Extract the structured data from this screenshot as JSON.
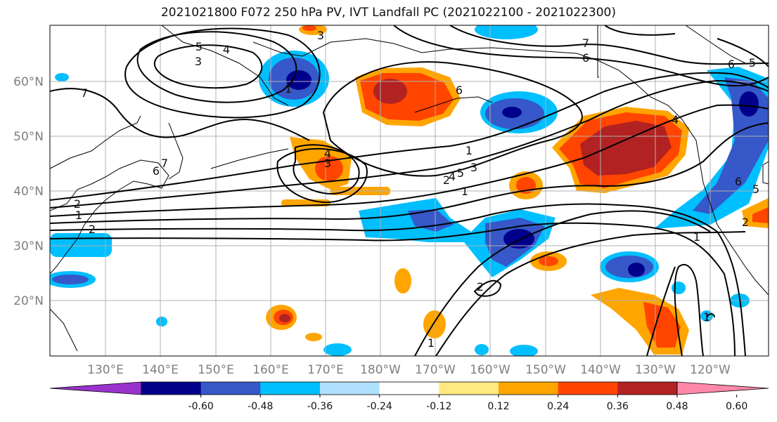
{
  "title": "2021021800 F072 250 hPa PV, IVT Landfall PC (2021022100 - 2021022300)",
  "map": {
    "projection": "cylindrical",
    "lon_range": [
      120,
      251
    ],
    "lat_range": [
      10,
      70
    ],
    "lat_labels": [
      "20°N",
      "30°N",
      "40°N",
      "50°N",
      "60°N"
    ],
    "lon_labels": [
      "130°E",
      "140°E",
      "150°E",
      "160°E",
      "170°E",
      "180°W",
      "170°W",
      "160°W",
      "150°W",
      "140°W",
      "130°W",
      "120°W"
    ],
    "contour_labels": [
      "3",
      "5",
      "4",
      "3",
      "7",
      "6",
      "6",
      "7",
      "6",
      "5",
      "1",
      "4",
      "3",
      "2",
      "1",
      "2",
      "6",
      "7",
      "3",
      "2",
      "1",
      "4",
      "5",
      "1",
      "1",
      "2",
      "1",
      "2",
      "6",
      "5",
      "4",
      "1"
    ]
  },
  "colorbar": {
    "ticks": [
      "-0.60",
      "-0.48",
      "-0.36",
      "-0.24",
      "-0.12",
      "0.12",
      "0.24",
      "0.36",
      "0.48",
      "0.60"
    ],
    "colors": [
      "#9933cc",
      "#00008b",
      "#3658c8",
      "#00bfff",
      "#b0e0ff",
      "#ffffff",
      "#ffe980",
      "#ffa500",
      "#ff4500",
      "#b22222",
      "#ff88aa"
    ]
  }
}
